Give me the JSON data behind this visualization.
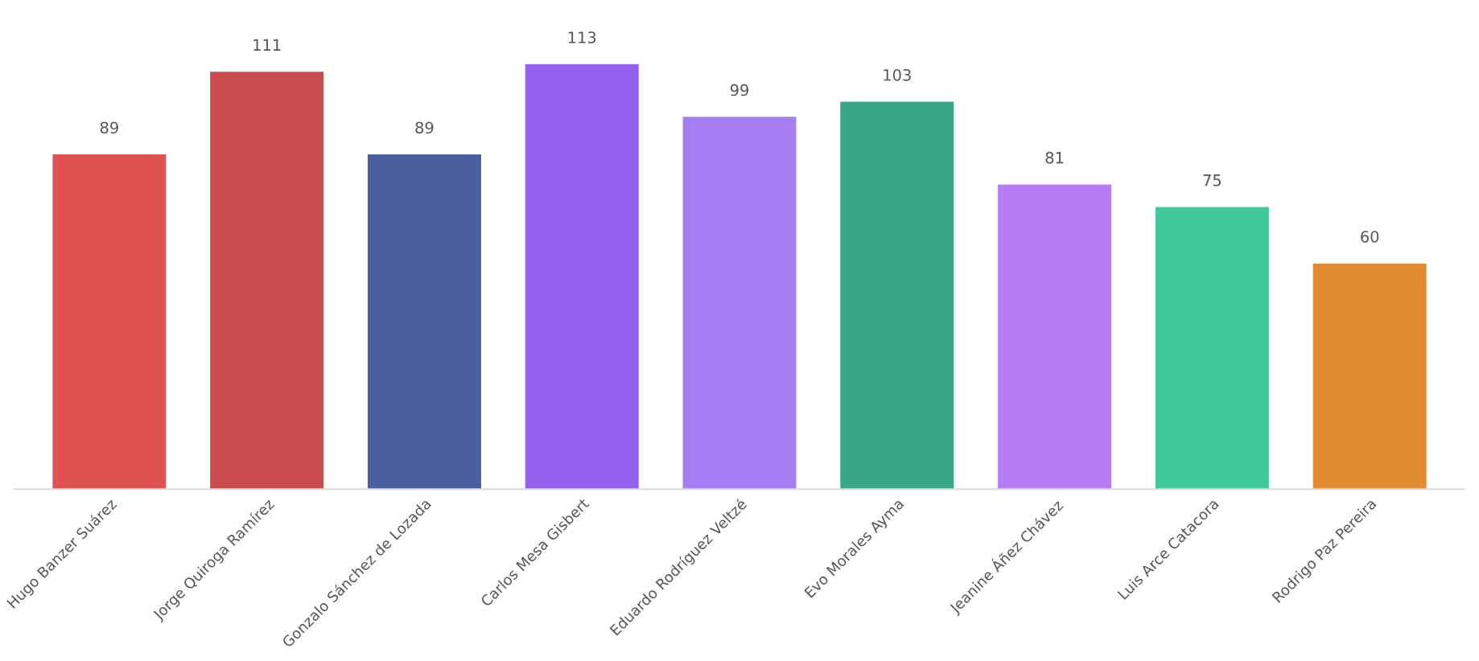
{
  "chart_data": {
    "type": "bar",
    "categories": [
      "Hugo Banzer Suárez",
      "Jorge Quiroga Ramírez",
      "Gonzalo Sánchez de Lozada",
      "Carlos Mesa Gisbert",
      "Eduardo Rodríguez Veltzé",
      "Evo Morales Ayma",
      "Jeanine Áñez Chávez",
      "Luis Arce Catacora",
      "Rodrigo Paz Pereira"
    ],
    "values": [
      89,
      111,
      89,
      113,
      99,
      103,
      81,
      75,
      60
    ],
    "colors": [
      "#e05252",
      "#c94b4b",
      "#4a5fa0",
      "#9560ee",
      "#a47ef2",
      "#38a889",
      "#b77cf5",
      "#40c898",
      "#e08a32"
    ],
    "data_labels": true,
    "grid": false,
    "legend": false
  }
}
